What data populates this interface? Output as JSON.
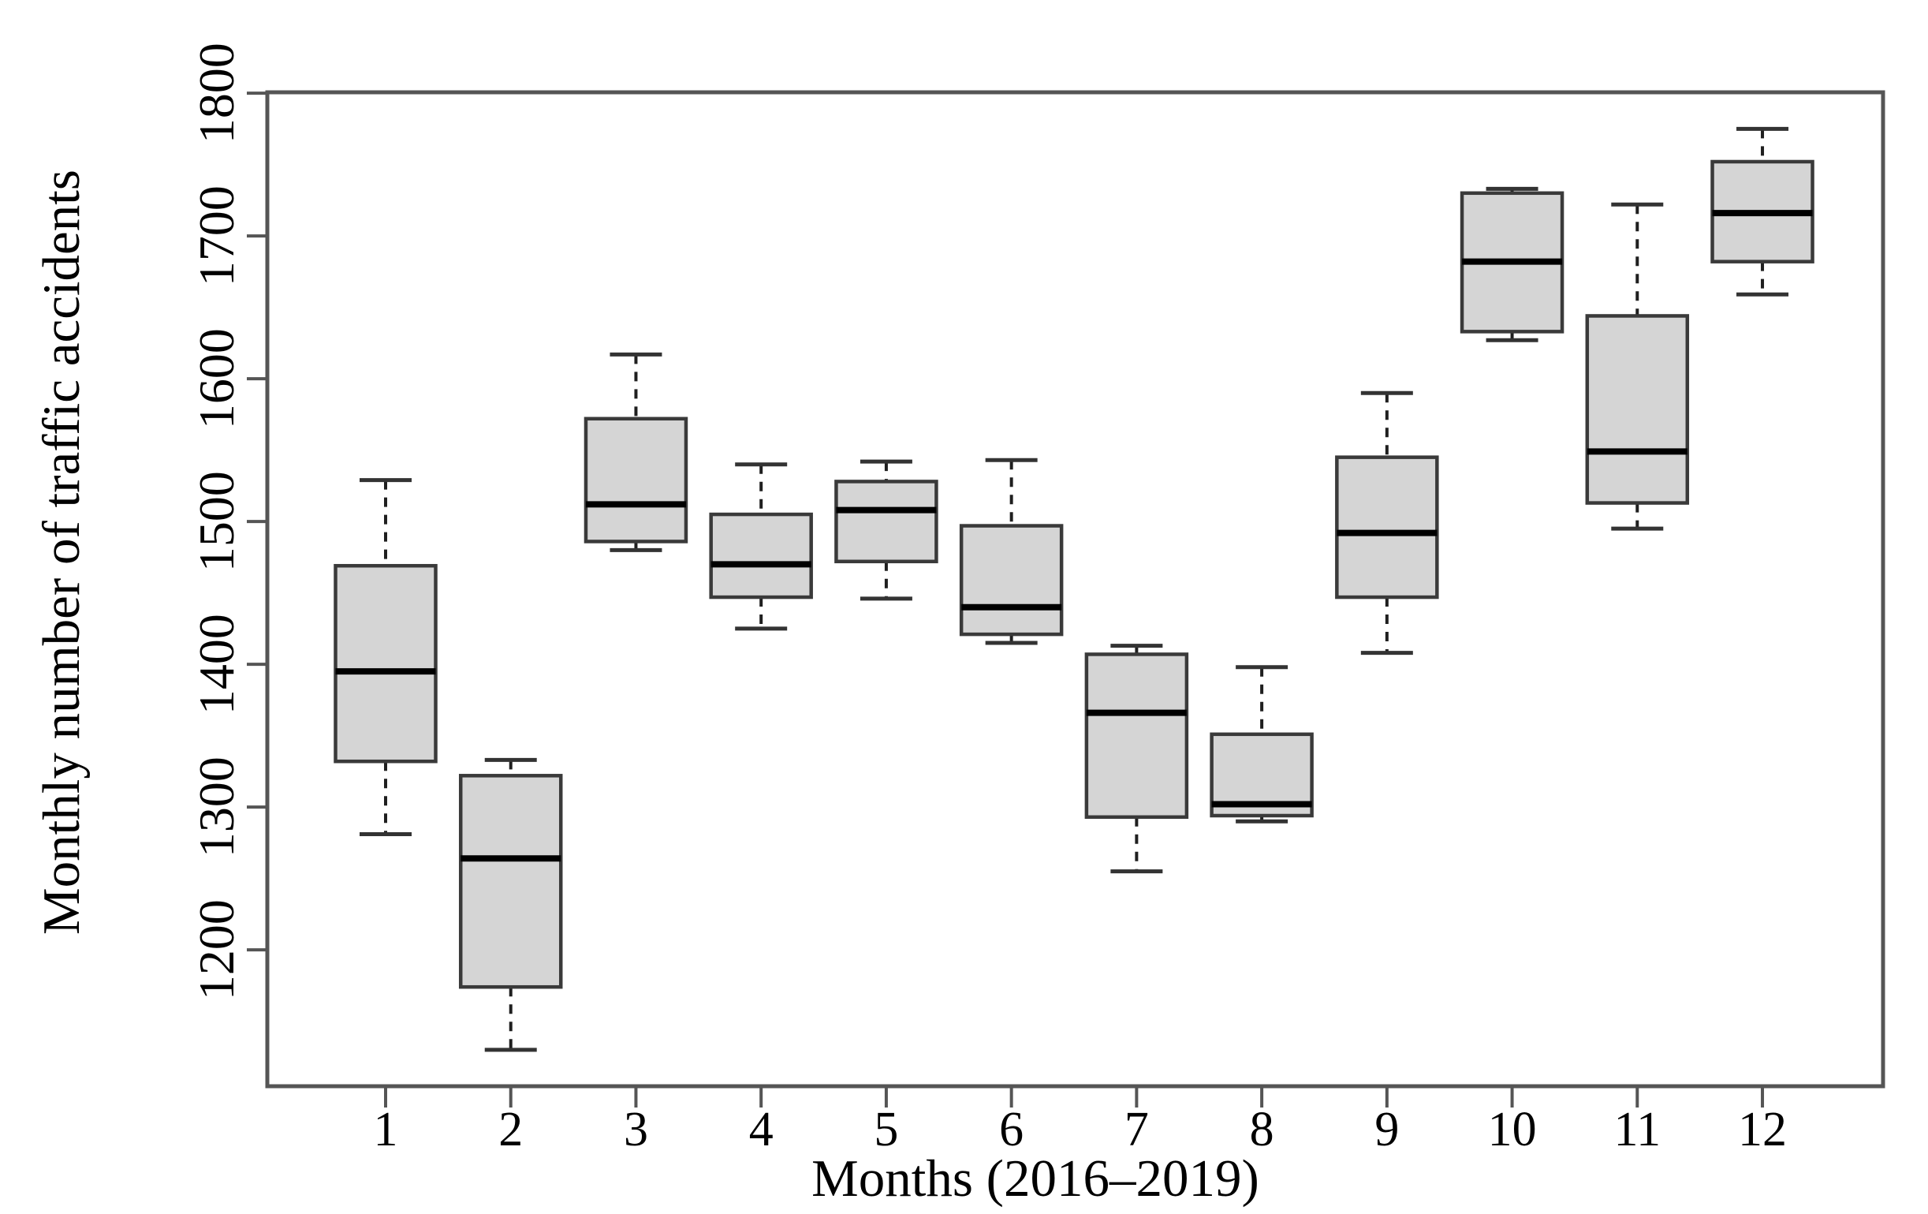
{
  "figure": {
    "kind": "statistical-boxplot-figure",
    "background": "#ffffff"
  },
  "colors": {
    "box_fill": "#d5d5d5",
    "box_border": "#3a3a3a",
    "median": "#000000",
    "whisker": "#1f1f1f",
    "whisker_cap": "#333333",
    "axis": "#555555",
    "text": "#000000",
    "background": "#ffffff"
  },
  "chart_data": {
    "type": "boxplot",
    "orientation": "vertical",
    "title": "",
    "xlabel": "Months (2016–2019)",
    "ylabel": "Monthly number of traffic accidents",
    "x_tick_labels": [
      "1",
      "2",
      "3",
      "4",
      "5",
      "6",
      "7",
      "8",
      "9",
      "10",
      "11",
      "12"
    ],
    "y_ticks": [
      1200,
      1300,
      1400,
      1500,
      1600,
      1700,
      1800
    ],
    "ylim": [
      1104.5,
      1800.6
    ],
    "grid": false,
    "legend": "none",
    "series": [
      {
        "month": "1",
        "min": 1281,
        "q1": 1332,
        "median": 1395,
        "q3": 1469,
        "max": 1529
      },
      {
        "month": "2",
        "min": 1130,
        "q1": 1174,
        "median": 1264,
        "q3": 1322,
        "max": 1333
      },
      {
        "month": "3",
        "min": 1480,
        "q1": 1486,
        "median": 1512,
        "q3": 1572,
        "max": 1617
      },
      {
        "month": "4",
        "min": 1425,
        "q1": 1447,
        "median": 1470,
        "q3": 1505,
        "max": 1540
      },
      {
        "month": "5",
        "min": 1446,
        "q1": 1472,
        "median": 1508,
        "q3": 1528,
        "max": 1542
      },
      {
        "month": "6",
        "min": 1415,
        "q1": 1421,
        "median": 1440,
        "q3": 1497,
        "max": 1543
      },
      {
        "month": "7",
        "min": 1255,
        "q1": 1293,
        "median": 1366,
        "q3": 1407,
        "max": 1413
      },
      {
        "month": "8",
        "min": 1290,
        "q1": 1294,
        "median": 1302,
        "q3": 1351,
        "max": 1398
      },
      {
        "month": "9",
        "min": 1408,
        "q1": 1447,
        "median": 1492,
        "q3": 1545,
        "max": 1590
      },
      {
        "month": "10",
        "min": 1627,
        "q1": 1633,
        "median": 1682,
        "q3": 1730,
        "max": 1733
      },
      {
        "month": "11",
        "min": 1495,
        "q1": 1513,
        "median": 1549,
        "q3": 1644,
        "max": 1722
      },
      {
        "month": "12",
        "min": 1659,
        "q1": 1682,
        "median": 1716,
        "q3": 1752,
        "max": 1775
      }
    ]
  }
}
